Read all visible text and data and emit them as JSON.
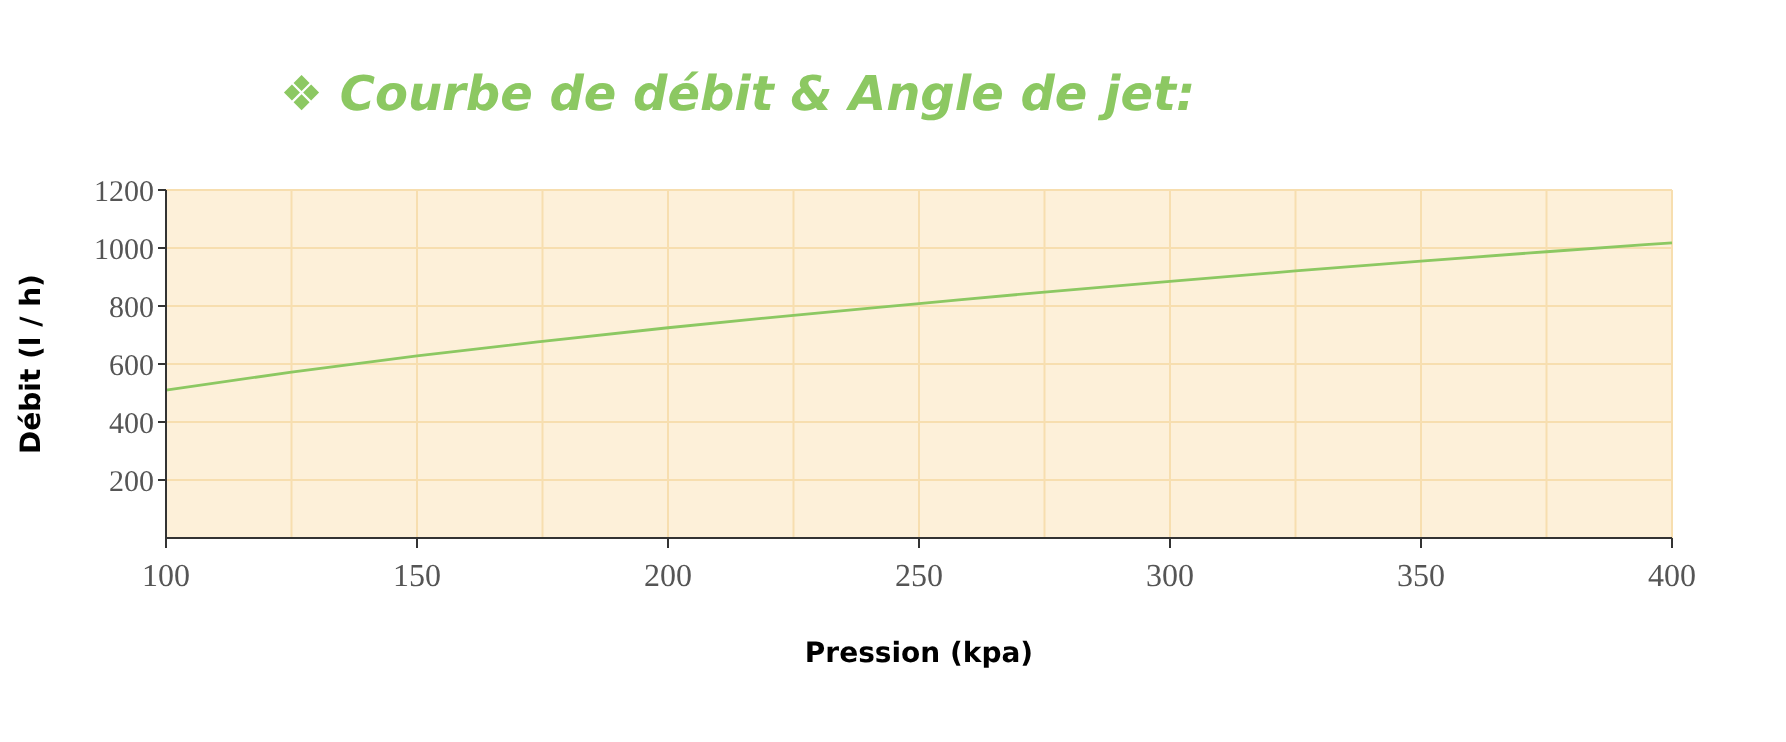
{
  "chart_data": {
    "type": "line",
    "title": "❖ Courbe de débit & Angle de jet:",
    "xlabel": "Pression (kpa)",
    "ylabel": "Débit (l / h)",
    "x": [
      100,
      125,
      150,
      175,
      200,
      225,
      250,
      275,
      300,
      325,
      350,
      375,
      400
    ],
    "series": [
      {
        "color": "#8cc862",
        "values": [
          510,
          572,
          628,
          678,
          725,
          768,
          808,
          848,
          885,
          921,
          955,
          987,
          1018
        ]
      }
    ],
    "xlim": [
      100,
      400
    ],
    "xticks": [
      100,
      {
        "value": 125,
        "label": null
      },
      150,
      {
        "value": 175,
        "label": null
      },
      200,
      {
        "value": 225,
        "label": null
      },
      250,
      {
        "value": 275,
        "label": null
      },
      300,
      {
        "value": 325,
        "label": null
      },
      350,
      {
        "value": 375,
        "label": null
      },
      400
    ],
    "ylim": [
      0,
      1200
    ],
    "yticks": [
      200,
      400,
      600,
      800,
      1000,
      1200
    ],
    "grid": true,
    "marker": "none",
    "line_style": "solid"
  }
}
